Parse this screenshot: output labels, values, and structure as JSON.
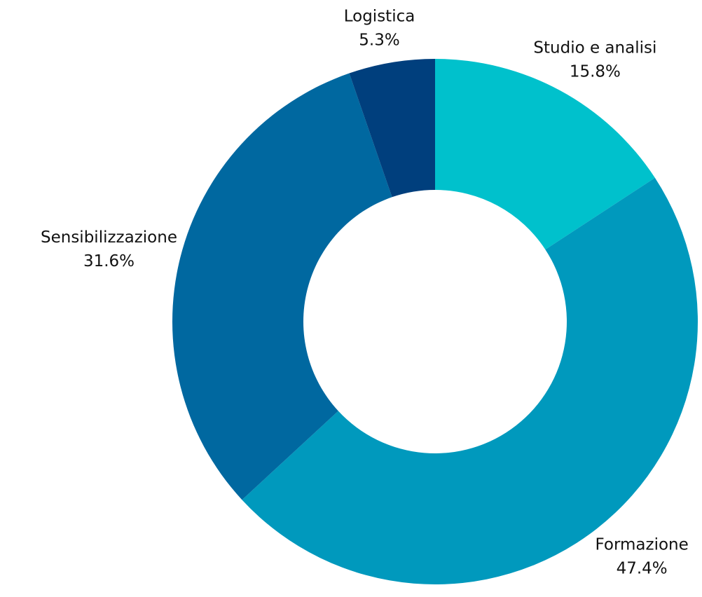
{
  "chart_data": {
    "type": "donut",
    "categories": [
      "Studio e analisi",
      "Formazione",
      "Sensibilizzazione",
      "Logistica"
    ],
    "values": [
      15.8,
      47.4,
      31.6,
      5.3
    ],
    "value_labels": [
      "15.8%",
      "47.4%",
      "31.6%",
      "5.3%"
    ],
    "colors": [
      "#00c1cc",
      "#0099bd",
      "#0068a0",
      "#003f7d"
    ]
  }
}
